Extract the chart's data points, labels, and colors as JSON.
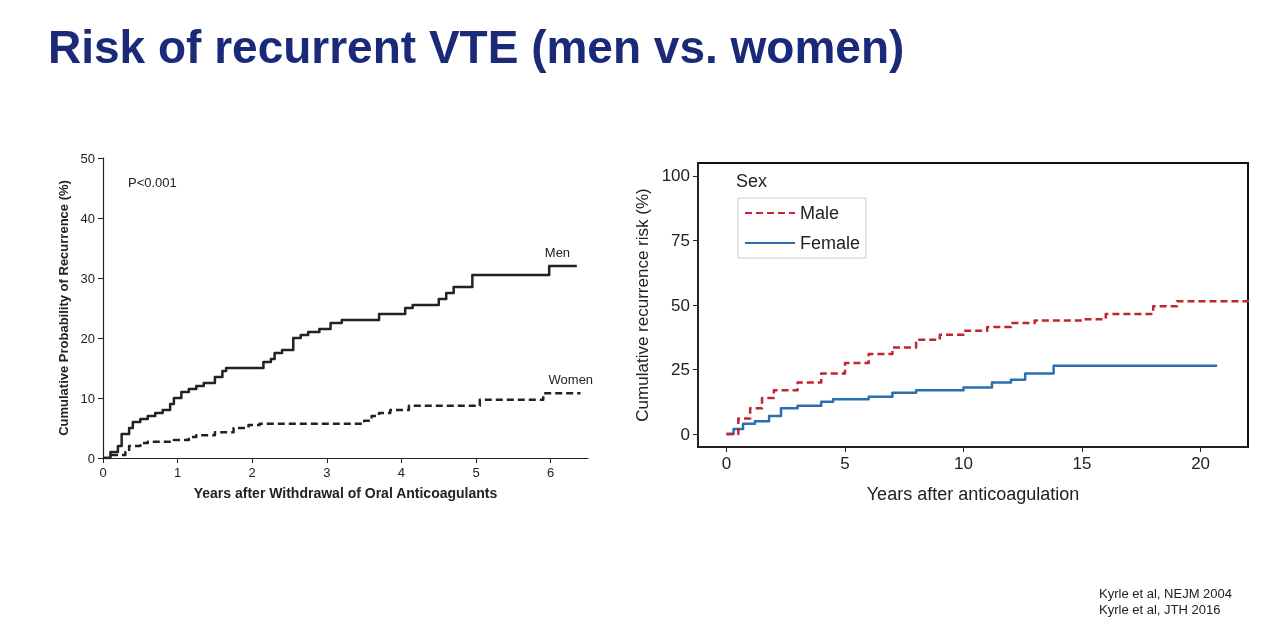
{
  "chart_data": [
    {
      "type": "step",
      "title": "Risk of recurrent VTE (men vs. women)",
      "xlabel": "Years after Withdrawal of Oral Anticoagulants",
      "ylabel": "Cumulative Probability of Recurrence (%)",
      "xlim": [
        0,
        6.5
      ],
      "xticks": [
        0,
        1,
        2,
        3,
        4,
        5,
        6
      ],
      "ylim": [
        0,
        50
      ],
      "yticks": [
        0,
        10,
        20,
        30,
        40,
        50
      ],
      "grid": false,
      "legend": false,
      "annotations": [
        "P<0.001",
        "Kyrle et al, NEJM 2004"
      ],
      "series": [
        {
          "name": "Men",
          "color": "#222222",
          "line_style": "solid",
          "x": [
            0,
            0.1,
            0.2,
            0.25,
            0.35,
            0.4,
            0.5,
            0.6,
            0.7,
            0.8,
            0.9,
            0.95,
            1.05,
            1.15,
            1.25,
            1.35,
            1.5,
            1.6,
            1.65,
            2.15,
            2.25,
            2.3,
            2.4,
            2.55,
            2.65,
            2.75,
            2.9,
            3.05,
            3.2,
            3.7,
            4.05,
            4.15,
            4.5,
            4.6,
            4.7,
            4.95,
            5.98,
            6.35
          ],
          "values": [
            0,
            1,
            2,
            4,
            5,
            6,
            6.5,
            7,
            7.5,
            8,
            9,
            10,
            11,
            11.5,
            12,
            12.5,
            13.5,
            14.5,
            15,
            16,
            16.5,
            17.5,
            18,
            20,
            20.5,
            21,
            21.5,
            22.5,
            23,
            24,
            25,
            25.5,
            26.5,
            27.5,
            28.5,
            30.5,
            32,
            32
          ]
        },
        {
          "name": "Women",
          "color": "#222222",
          "line_style": "dashed",
          "x": [
            0,
            0.1,
            0.3,
            0.35,
            0.5,
            0.6,
            0.95,
            1.15,
            1.25,
            1.5,
            1.75,
            1.95,
            2.1,
            3.5,
            3.6,
            3.7,
            3.85,
            4.1,
            5.05,
            5.9,
            6.4
          ],
          "values": [
            0,
            0.5,
            1,
            2,
            2.5,
            2.7,
            3,
            3.5,
            3.8,
            4.3,
            5,
            5.5,
            5.7,
            6.2,
            7,
            7.5,
            8,
            8.7,
            9.7,
            10.8,
            10.8
          ]
        }
      ]
    },
    {
      "type": "step",
      "xlabel": "Years after anticoagulation",
      "ylabel": "Cumulative recurrence risk (%)",
      "xlim": [
        -1.2,
        22
      ],
      "xticks": [
        0,
        5,
        10,
        15,
        20
      ],
      "ylim": [
        -5,
        105
      ],
      "yticks": [
        0,
        25,
        50,
        75,
        100
      ],
      "grid": false,
      "legend": "top left",
      "legend_title": "Sex",
      "annotations": [
        "Kyrle et al, JTH 2016"
      ],
      "series": [
        {
          "name": "Male",
          "color": "#c0272d",
          "line_style": "dashed",
          "x": [
            0,
            0.5,
            1,
            1.5,
            2,
            3,
            4,
            5,
            6,
            7,
            8,
            9,
            10,
            11,
            12,
            13,
            15,
            16,
            18,
            19,
            22
          ],
          "values": [
            0,
            6,
            10,
            14,
            17,
            20,
            23.5,
            27.5,
            31,
            33.5,
            36.5,
            38.5,
            40,
            41.5,
            43,
            44,
            44.5,
            46.5,
            49.5,
            51.5,
            52
          ]
        },
        {
          "name": "Female",
          "color": "#2a6fb0",
          "line_style": "solid",
          "x": [
            0,
            0.3,
            0.7,
            1.2,
            1.8,
            2.3,
            3,
            4,
            4.5,
            6,
            7,
            8,
            10,
            11.2,
            12,
            12.6,
            13.8,
            20.7
          ],
          "values": [
            0,
            2,
            4,
            5,
            7,
            10,
            11,
            12.5,
            13.5,
            14.5,
            16,
            17,
            18,
            20,
            21,
            23.5,
            26.5,
            26.5
          ]
        }
      ]
    }
  ]
}
